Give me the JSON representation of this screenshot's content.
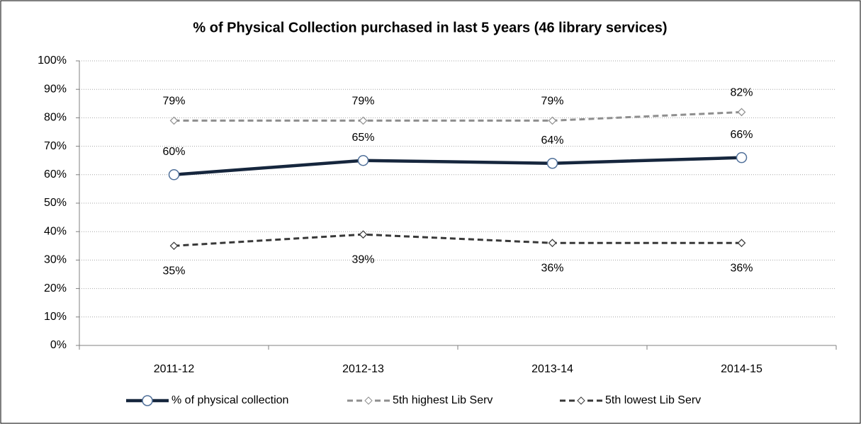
{
  "chart_data": {
    "type": "line",
    "title": "% of Physical Collection purchased in last 5 years (46 library services)",
    "categories": [
      "2011-12",
      "2012-13",
      "2013-14",
      "2014-15"
    ],
    "series": [
      {
        "name": "% of physical collection",
        "color": "#16263d",
        "marker": "circle",
        "dashed": false,
        "values": [
          60,
          65,
          64,
          66
        ],
        "value_labels": [
          "60%",
          "65%",
          "64%",
          "66%"
        ]
      },
      {
        "name": "5th highest Lib Serv",
        "color": "#8e8e8e",
        "marker": "diamond",
        "dashed": true,
        "values": [
          79,
          79,
          79,
          82
        ],
        "value_labels": [
          "79%",
          "79%",
          "79%",
          "82%"
        ]
      },
      {
        "name": "5th lowest Lib Serv",
        "color": "#383838",
        "marker": "diamond",
        "dashed": true,
        "values": [
          35,
          39,
          36,
          36
        ],
        "value_labels": [
          "35%",
          "39%",
          "36%",
          "36%"
        ]
      }
    ],
    "ylim": [
      0,
      100
    ],
    "yticks": [
      {
        "value": 0,
        "label": "0%"
      },
      {
        "value": 10,
        "label": "10%"
      },
      {
        "value": 20,
        "label": "20%"
      },
      {
        "value": 30,
        "label": "30%"
      },
      {
        "value": 40,
        "label": "40%"
      },
      {
        "value": 50,
        "label": "50%"
      },
      {
        "value": 60,
        "label": "60%"
      },
      {
        "value": 70,
        "label": "70%"
      },
      {
        "value": 80,
        "label": "80%"
      },
      {
        "value": 90,
        "label": "90%"
      },
      {
        "value": 100,
        "label": "100%"
      }
    ],
    "grid": true,
    "legend": "bottom"
  }
}
